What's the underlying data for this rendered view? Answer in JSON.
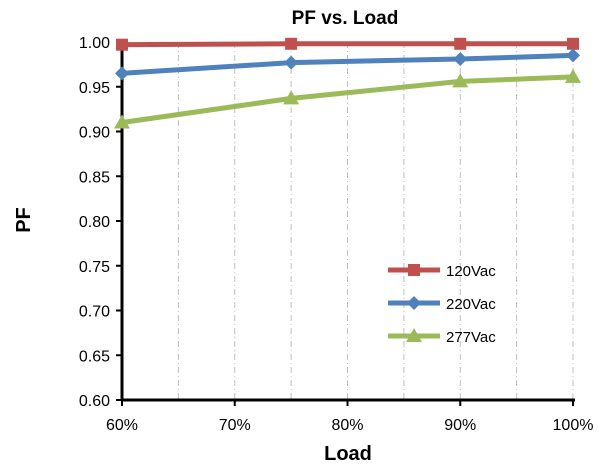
{
  "chart_data": {
    "type": "line",
    "title": "PF vs. Load",
    "xlabel": "Load",
    "ylabel": "PF",
    "xlim": [
      60,
      100
    ],
    "ylim": [
      0.6,
      1.0
    ],
    "x_ticks": [
      "60%",
      "70%",
      "80%",
      "90%",
      "100%"
    ],
    "y_ticks": [
      "0.60",
      "0.65",
      "0.70",
      "0.75",
      "0.80",
      "0.85",
      "0.90",
      "0.95",
      "1.00"
    ],
    "x": [
      60,
      75,
      90,
      100
    ],
    "x_unit": "% load",
    "grid": "vertical dash-dot lines every 5%",
    "legend_position": "lower-right",
    "series": [
      {
        "name": "120Vac",
        "color": "#c0504d",
        "marker": "square",
        "values": [
          0.997,
          0.998,
          0.998,
          0.998
        ]
      },
      {
        "name": "220Vac",
        "color": "#4f81bd",
        "marker": "diamond",
        "values": [
          0.965,
          0.977,
          0.981,
          0.985
        ]
      },
      {
        "name": "277Vac",
        "color": "#9bbb59",
        "marker": "triangle",
        "values": [
          0.91,
          0.937,
          0.956,
          0.961
        ]
      }
    ]
  }
}
